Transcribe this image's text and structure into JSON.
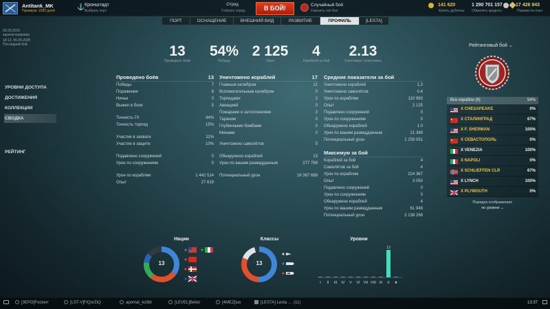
{
  "topbar": {
    "player_name": "Antitank_MK",
    "player_sub": "Премиум: 3350 дней",
    "port_name": "Кронштадт",
    "port_sub": "Выбрать порт",
    "squad_title": "Отряд",
    "squad_sub": "Собрать отряд",
    "battle_label": "В БОЙ!",
    "mode_title": "Случайный бой",
    "mode_sub": "Сменить тип боя",
    "doubloons": "141 620",
    "doubloons_sub": "Купить дублоны",
    "credits": "1 290 701 157",
    "credits_sub": "Обменять кредиты",
    "free_xp": "17 426 943",
    "free_xp_sub": "Перевести опыт"
  },
  "tabs": [
    {
      "label": "ПОРТ",
      "active": false
    },
    {
      "label": "ОСНАЩЕНИЕ",
      "active": false
    },
    {
      "label": "ВНЕШНИЙ ВИД",
      "active": false
    },
    {
      "label": "РАЗВИТИЕ",
      "active": false
    },
    {
      "label": "ПРОФИЛЬ",
      "active": true
    },
    {
      "label": "[LESTA]",
      "active": false
    }
  ],
  "left_info": {
    "reg_date": "03.03.2015",
    "reg_label": "зарегистрирован",
    "last_battle_date": "18:13, 06.05.2025",
    "last_battle_label": "Последний бой"
  },
  "menu": {
    "access_levels": "УРОВНИ ДОСТУПА",
    "achievements": "ДОСТИЖЕНИЯ",
    "collections": "КОЛЛЕКЦИИ",
    "summary": "СВОДКА",
    "rating": "РЕЙТИНГ"
  },
  "summary": [
    {
      "value": "13",
      "label": "Проведено боёв"
    },
    {
      "value": "54%",
      "label": "Победы"
    },
    {
      "value": "2 125",
      "label": "Опыт"
    },
    {
      "value": "4",
      "label": "Кораблей за бой"
    },
    {
      "value": "2.13",
      "label": "Уничтожил / уничтожен"
    }
  ],
  "battles": {
    "title": "Проведено боёв",
    "title_value": "13",
    "rows": [
      {
        "label": "Победы",
        "value": "7"
      },
      {
        "label": "Поражения",
        "value": "6"
      },
      {
        "label": "Ничьи",
        "value": "0"
      },
      {
        "label": "Выжил в боях",
        "value": "5"
      },
      {
        "label": "Точность ГК",
        "value": "44%"
      },
      {
        "label": "Точность торпед",
        "value": "15%"
      },
      {
        "label": "Участие в захвате",
        "value": "11%"
      },
      {
        "label": "Участие в защите",
        "value": "10%"
      },
      {
        "label": "Подавлено сооружений",
        "value": "0"
      },
      {
        "label": "Урон по сооружениям",
        "value": "0"
      },
      {
        "label": "Урон по кораблям",
        "value": "1 442 514"
      },
      {
        "label": "Опыт",
        "value": "27 619"
      }
    ]
  },
  "destroyed": {
    "title": "Уничтожено кораблей",
    "title_value": "17",
    "rows": [
      {
        "label": "Главным калибром",
        "value": "12"
      },
      {
        "label": "Вспомогательным калибром",
        "value": "0"
      },
      {
        "label": "Торпедами",
        "value": "2"
      },
      {
        "label": "Авиацией",
        "value": "0"
      },
      {
        "label": "Пожарами и затоплениями",
        "value": "3"
      },
      {
        "label": "Тараном",
        "value": "0"
      },
      {
        "label": "Глубинными бомбами",
        "value": "0"
      },
      {
        "label": "Минами",
        "value": "0"
      },
      {
        "label": "Уничтожено самолётов",
        "value": "5"
      },
      {
        "label": "Обнаружено кораблей",
        "value": "13"
      },
      {
        "label": "Урон по вашим разведданным",
        "value": "277 799"
      },
      {
        "label": "Потенциальный урон",
        "value": "16 367 669"
      }
    ]
  },
  "averages": {
    "title": "Средние показатели за бой",
    "rows": [
      {
        "label": "Уничтожено кораблей",
        "value": "1.3"
      },
      {
        "label": "Уничтожено самолётов",
        "value": "0.4"
      },
      {
        "label": "Урон по кораблям",
        "value": "110 963"
      },
      {
        "label": "Опыт",
        "value": "2 125"
      },
      {
        "label": "Подавлено сооружений",
        "value": "0"
      },
      {
        "label": "Урон по сооружениям",
        "value": "0"
      },
      {
        "label": "Обнаружено кораблей",
        "value": "1.0"
      },
      {
        "label": "Урон по вашим разведданным",
        "value": "21 369"
      },
      {
        "label": "Потенциальный урон",
        "value": "1 259 051"
      }
    ]
  },
  "maximums": {
    "title": "Максимум за бой",
    "rows": [
      {
        "label": "Кораблей за бой",
        "value": "4"
      },
      {
        "label": "Самолётов за бой",
        "value": "4"
      },
      {
        "label": "Урон по кораблям",
        "value": "224 387"
      },
      {
        "label": "Опыт",
        "value": "3 050"
      },
      {
        "label": "Подавлено сооружений",
        "value": "0"
      },
      {
        "label": "Урон по сооружениям",
        "value": "0"
      },
      {
        "label": "Обнаружено кораблей",
        "value": "4"
      },
      {
        "label": "Урон по вашим разведданным",
        "value": "61 948"
      },
      {
        "label": "Потенциальный урон",
        "value": "2 138 268"
      }
    ]
  },
  "ranked": {
    "title": "Рейтинговый бой",
    "ships_header": "Все корабли (9)",
    "ships_header_pct": "54%",
    "ships": [
      {
        "flag": "us",
        "name": "X CHESAPEAKE",
        "pct": "0%",
        "gold": true
      },
      {
        "flag": "cn",
        "name": "X СТАЛИНГРАД",
        "pct": "67%",
        "gold": true
      },
      {
        "flag": "us",
        "name": "X F. SHERMAN",
        "pct": "100%",
        "gold": true
      },
      {
        "flag": "cn",
        "name": "X СЕВАСТОПОЛЬ",
        "pct": "0%",
        "gold": true
      },
      {
        "flag": "it",
        "name": "X VENEZIA",
        "pct": "100%",
        "gold": false
      },
      {
        "flag": "it",
        "name": "X NAPOLI",
        "pct": "0%",
        "gold": true
      },
      {
        "flag": "no",
        "name": "X SCHLIEFFEN CLR",
        "pct": "67%",
        "gold": true
      },
      {
        "flag": "us",
        "name": "X LYNCH",
        "pct": "100%",
        "gold": false
      },
      {
        "flag": "gb",
        "name": "X PLYMOUTH",
        "pct": "0%",
        "gold": true
      }
    ],
    "sort_label": "Порядок отображения:",
    "sort_value": "по уровню"
  },
  "nations_chart": {
    "title": "Нации",
    "center": "13"
  },
  "classes_chart": {
    "title": "Классы",
    "center": "13"
  },
  "chart_data": {
    "type": "bar",
    "title": "Уровни",
    "categories": [
      "I",
      "II",
      "III",
      "IV",
      "V",
      "VI",
      "VII",
      "VIII",
      "IX",
      "X",
      "★"
    ],
    "values": [
      0,
      0,
      0,
      0,
      0,
      0,
      0,
      0,
      0,
      13,
      0
    ],
    "data_labels": [
      "",
      "",
      "",
      "",
      "",
      "",
      "",
      "",
      "",
      "13",
      ""
    ],
    "bar_color": "#3ee0c0"
  },
  "chat": {
    "items": [
      "[3EPO]Fockerr",
      "[LST-V]FiQorZiQ",
      "apomat_ko3bl",
      "[LEVEL]Belior",
      "[4MEZ]iuo",
      "[LESTA] Lesta ..."
    ],
    "count": "(11)",
    "time": "13:37"
  }
}
